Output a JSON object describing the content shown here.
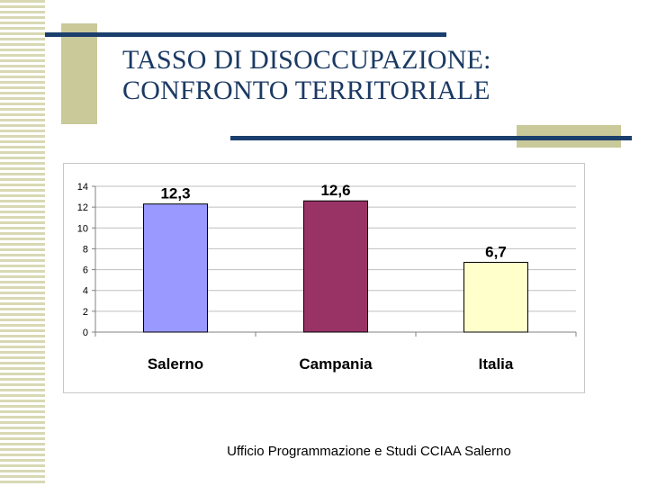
{
  "slide": {
    "title_line1": "TASSO DI DISOCCUPAZIONE:",
    "title_line2": "CONFRONTO TERRITORIALE",
    "footer": "Ufficio Programmazione e Studi CCIAA Salerno"
  },
  "colors": {
    "accent_navy": "#1b3f6d",
    "accent_khaki": "#c9c99a",
    "stripe": "#d8d8b4",
    "title_text": "#1b3a63"
  },
  "chart_data": {
    "type": "bar",
    "categories": [
      "Salerno",
      "Campania",
      "Italia"
    ],
    "values": [
      12.3,
      12.6,
      6.7
    ],
    "value_labels": [
      "12,3",
      "12,6",
      "6,7"
    ],
    "bar_colors": [
      "#9999ff",
      "#993366",
      "#ffffcc"
    ],
    "ylim": [
      0,
      14
    ],
    "yticks": [
      0,
      2,
      4,
      6,
      8,
      10,
      12,
      14
    ],
    "grid": true,
    "legend": "none",
    "title": "",
    "xlabel": "",
    "ylabel": ""
  }
}
